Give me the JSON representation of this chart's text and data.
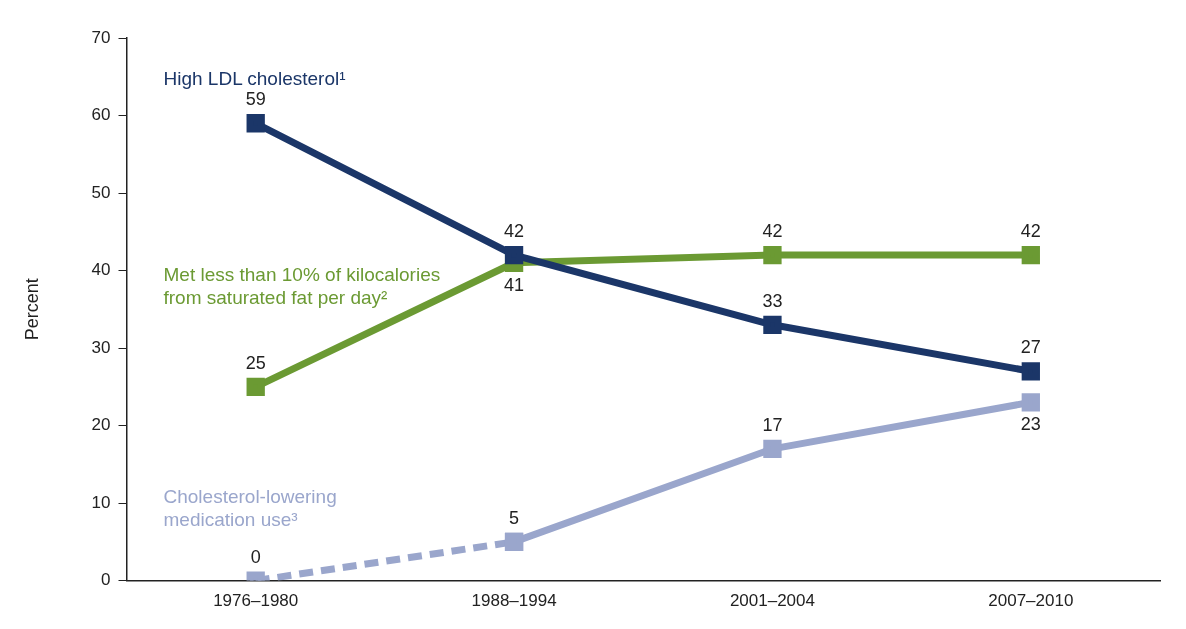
{
  "chart_data": {
    "type": "line",
    "ylabel": "Percent",
    "categories": [
      "1976–1980",
      "1988–1994",
      "2001–2004",
      "2007–2010"
    ],
    "ylim": [
      0,
      70
    ],
    "yticks": [
      0,
      10,
      20,
      30,
      40,
      50,
      60,
      70
    ],
    "grid": false,
    "legend": false,
    "marker": "square",
    "data_labels": true,
    "series": [
      {
        "name": "High LDL cholesterol¹",
        "color": "#1b3668",
        "values": [
          59,
          42,
          33,
          27
        ]
      },
      {
        "name": "Met less than 10% of kilocalories from saturated fat per day²",
        "color": "#6b9a33",
        "values": [
          25,
          41,
          42,
          42
        ]
      },
      {
        "name": "Cholesterol-lowering medication use³",
        "color": "#9aa6cc",
        "values": [
          null,
          5,
          17,
          23
        ]
      },
      {
        "color": "#9aa6cc",
        "values": [
          0,
          5,
          null,
          null
        ],
        "line_style": "dashed",
        "value_labels": [
          "0",
          null,
          null,
          null
        ]
      }
    ]
  }
}
